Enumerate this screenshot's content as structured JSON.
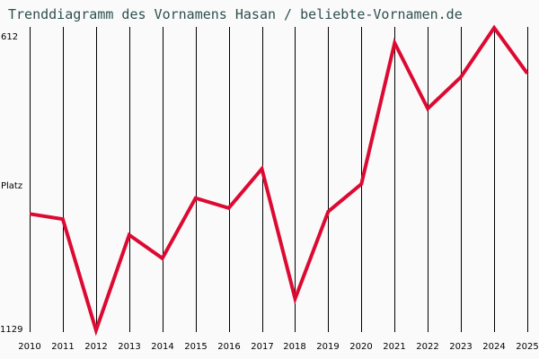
{
  "title": "Trenddiagramm des Vornamens Hasan / beliebte-Vornamen.de",
  "y_axis": {
    "top_label": "612",
    "middle_label": "Platz",
    "bottom_label": "1129"
  },
  "colors": {
    "background": "#fafafa",
    "line": "#dc0a32",
    "grid": "#000000",
    "title": "#2f4f4f"
  },
  "chart_data": {
    "type": "line",
    "title": "Trenddiagramm des Vornamens Hasan / beliebte-Vornamen.de",
    "xlabel": "",
    "ylabel": "Platz",
    "categories": [
      "2010",
      "2011",
      "2012",
      "2013",
      "2014",
      "2015",
      "2016",
      "2017",
      "2018",
      "2019",
      "2020",
      "2021",
      "2022",
      "2023",
      "2024",
      "2025"
    ],
    "series": [
      {
        "name": "Hasan",
        "values": [
          930,
          939,
          1129,
          966,
          1006,
          903,
          920,
          853,
          1075,
          926,
          879,
          638,
          750,
          696,
          612,
          690
        ]
      }
    ],
    "ylim": [
      1129,
      612
    ],
    "y_inverted": true,
    "grid": "vertical lines per year",
    "legend": "none"
  }
}
